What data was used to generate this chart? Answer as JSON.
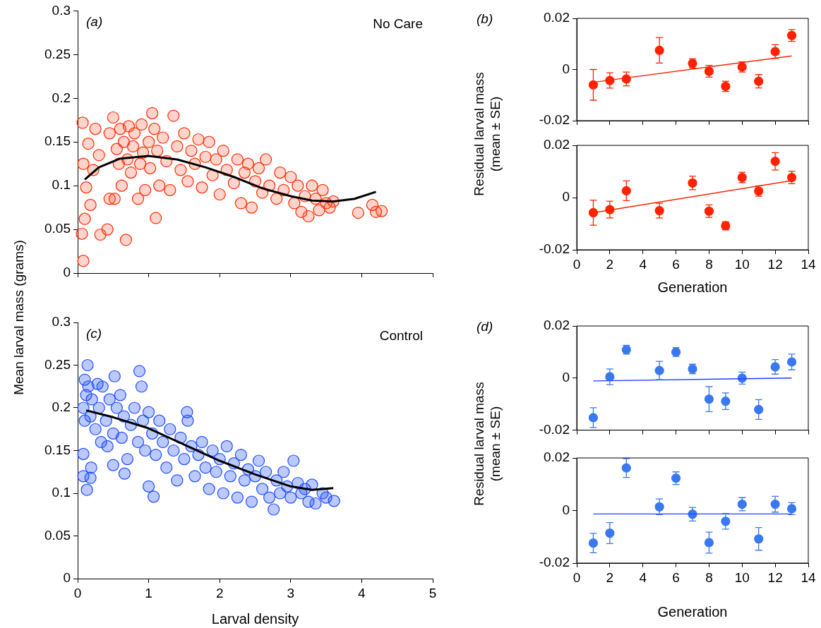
{
  "chart_data": [
    {
      "type": "scatter",
      "title": "(a)",
      "ylabel": "Mean larval mass (grams)",
      "annotations": [
        "No Care"
      ],
      "xlim": [
        0,
        5
      ],
      "xticks": [
        0,
        1,
        2,
        3,
        4,
        5
      ],
      "ylim": [
        0,
        0.3
      ],
      "yticks": [
        0,
        0.05,
        0.1,
        0.15,
        0.2,
        0.25,
        0.3
      ],
      "tick_labels": "y",
      "grid": false,
      "marker": "circle",
      "series": [
        {
          "type": "scatter",
          "color": "#ff2a00",
          "x": [
            0.06,
            0.08,
            0.07,
            0.08,
            0.1,
            0.12,
            0.15,
            0.18,
            0.22,
            0.25,
            0.3,
            0.32,
            0.42,
            0.45,
            0.45,
            0.5,
            0.52,
            0.55,
            0.58,
            0.6,
            0.62,
            0.65,
            0.68,
            0.7,
            0.72,
            0.75,
            0.78,
            0.8,
            0.85,
            0.88,
            0.9,
            0.92,
            0.95,
            1.0,
            1.02,
            1.05,
            1.08,
            1.1,
            1.12,
            1.15,
            1.2,
            1.25,
            1.3,
            1.35,
            1.4,
            1.45,
            1.5,
            1.55,
            1.6,
            1.65,
            1.7,
            1.75,
            1.8,
            1.85,
            1.9,
            1.95,
            2.0,
            2.05,
            2.1,
            2.2,
            2.25,
            2.3,
            2.35,
            2.4,
            2.45,
            2.5,
            2.55,
            2.6,
            2.65,
            2.7,
            2.8,
            2.85,
            2.9,
            3.0,
            3.05,
            3.1,
            3.15,
            3.2,
            3.25,
            3.3,
            3.35,
            3.4,
            3.45,
            3.5,
            3.55,
            3.6,
            3.95,
            4.15,
            4.2,
            4.28
          ],
          "values": [
            0.045,
            0.014,
            0.172,
            0.125,
            0.062,
            0.098,
            0.148,
            0.078,
            0.118,
            0.165,
            0.135,
            0.044,
            0.05,
            0.085,
            0.16,
            0.178,
            0.085,
            0.142,
            0.125,
            0.165,
            0.1,
            0.15,
            0.038,
            0.13,
            0.168,
            0.115,
            0.145,
            0.16,
            0.085,
            0.125,
            0.17,
            0.138,
            0.095,
            0.15,
            0.12,
            0.183,
            0.165,
            0.063,
            0.14,
            0.1,
            0.155,
            0.128,
            0.095,
            0.18,
            0.145,
            0.118,
            0.16,
            0.105,
            0.14,
            0.125,
            0.153,
            0.098,
            0.133,
            0.15,
            0.112,
            0.13,
            0.09,
            0.14,
            0.118,
            0.103,
            0.13,
            0.08,
            0.115,
            0.125,
            0.075,
            0.105,
            0.12,
            0.092,
            0.13,
            0.1,
            0.085,
            0.115,
            0.095,
            0.11,
            0.08,
            0.1,
            0.07,
            0.088,
            0.065,
            0.1,
            0.085,
            0.072,
            0.095,
            0.08,
            0.075,
            0.082,
            0.069,
            0.078,
            0.07,
            0.071
          ]
        },
        {
          "type": "line",
          "marker": "none",
          "color": "#000000",
          "x": [
            0.1,
            0.3,
            0.6,
            1.0,
            1.4,
            1.8,
            2.2,
            2.6,
            3.0,
            3.3,
            3.6,
            3.9,
            4.2
          ],
          "values": [
            0.107,
            0.121,
            0.131,
            0.134,
            0.13,
            0.121,
            0.11,
            0.097,
            0.088,
            0.083,
            0.082,
            0.085,
            0.093
          ]
        }
      ]
    },
    {
      "type": "scatter",
      "title": "(b)",
      "ylabel": "Residual larval mass (mean ± SE)",
      "xlim": [
        0,
        14
      ],
      "xticks": [
        0,
        2,
        4,
        6,
        8,
        10,
        12,
        14
      ],
      "ylim": [
        -0.02,
        0.02
      ],
      "yticks": [
        -0.02,
        0,
        0.02
      ],
      "tick_labels": "y",
      "grid": false,
      "marker": "circle",
      "series": [
        {
          "type": "scatter",
          "color": "#ff2200",
          "x": [
            1,
            2,
            3,
            5,
            7,
            8,
            9,
            10,
            11,
            12,
            13
          ],
          "values": [
            -0.006,
            -0.0043,
            -0.0037,
            0.0075,
            0.0024,
            -0.0007,
            -0.0066,
            0.001,
            -0.0046,
            0.007,
            0.0133
          ],
          "errors": [
            0.006,
            0.003,
            0.0027,
            0.005,
            0.0018,
            0.0023,
            0.002,
            0.002,
            0.0026,
            0.0027,
            0.0023
          ]
        },
        {
          "type": "line",
          "marker": "none",
          "color": "#ff2200",
          "x": [
            1,
            13
          ],
          "values": [
            -0.005,
            0.0053
          ]
        }
      ]
    },
    {
      "type": "scatter",
      "xlabel": "Generation",
      "xlim": [
        0,
        14
      ],
      "xticks": [
        0,
        2,
        4,
        6,
        8,
        10,
        12,
        14
      ],
      "ylim": [
        -0.02,
        0.02
      ],
      "yticks": [
        -0.02,
        0,
        0.02
      ],
      "grid": false,
      "marker": "circle",
      "series": [
        {
          "type": "scatter",
          "color": "#ff2200",
          "x": [
            1,
            2,
            3,
            5,
            7,
            8,
            9,
            10,
            11,
            12,
            13
          ],
          "values": [
            -0.0058,
            -0.0046,
            0.0026,
            -0.005,
            0.0056,
            -0.0052,
            -0.0108,
            0.0077,
            0.0025,
            0.0139,
            0.0077
          ],
          "errors": [
            0.0048,
            0.0032,
            0.0038,
            0.0028,
            0.0026,
            0.0024,
            0.0015,
            0.002,
            0.002,
            0.0033,
            0.0024
          ]
        },
        {
          "type": "line",
          "marker": "none",
          "color": "#ff2200",
          "x": [
            1,
            13
          ],
          "values": [
            -0.0058,
            0.0065
          ]
        }
      ]
    },
    {
      "type": "scatter",
      "title": "(c)",
      "xlabel": "Larval density",
      "annotations": [
        "Control"
      ],
      "xlim": [
        0,
        5
      ],
      "xticks": [
        0,
        1,
        2,
        3,
        4,
        5
      ],
      "ylim": [
        0,
        0.3
      ],
      "yticks": [
        0,
        0.05,
        0.1,
        0.15,
        0.2,
        0.25,
        0.3
      ],
      "grid": false,
      "marker": "circle",
      "series": [
        {
          "type": "scatter",
          "color": "#1f4dff",
          "x": [
            0.14,
            0.1,
            0.08,
            0.08,
            0.13,
            0.18,
            0.19,
            0.52,
            0.87,
            1.54,
            3.04,
            2.76,
            3.61,
            1.07,
            1.0,
            0.5,
            0.66,
            0.08,
            0.1,
            0.12,
            0.15,
            0.18,
            0.2,
            0.25,
            0.28,
            0.3,
            0.33,
            0.35,
            0.4,
            0.42,
            0.45,
            0.5,
            0.55,
            0.6,
            0.62,
            0.65,
            0.7,
            0.75,
            0.8,
            0.85,
            0.9,
            0.92,
            0.95,
            1.0,
            1.05,
            1.1,
            1.15,
            1.2,
            1.25,
            1.3,
            1.35,
            1.4,
            1.45,
            1.5,
            1.55,
            1.6,
            1.65,
            1.7,
            1.75,
            1.8,
            1.85,
            1.9,
            1.95,
            2.0,
            2.05,
            2.1,
            2.15,
            2.2,
            2.25,
            2.3,
            2.35,
            2.4,
            2.45,
            2.5,
            2.55,
            2.6,
            2.65,
            2.7,
            2.8,
            2.85,
            2.9,
            2.95,
            3.0,
            3.1,
            3.15,
            3.2,
            3.25,
            3.3,
            3.35,
            3.45,
            3.5
          ],
          "values": [
            0.25,
            0.233,
            0.146,
            0.12,
            0.104,
            0.118,
            0.13,
            0.237,
            0.243,
            0.195,
            0.138,
            0.081,
            0.091,
            0.096,
            0.108,
            0.133,
            0.123,
            0.2,
            0.185,
            0.215,
            0.225,
            0.19,
            0.21,
            0.175,
            0.228,
            0.2,
            0.16,
            0.225,
            0.185,
            0.155,
            0.21,
            0.17,
            0.2,
            0.215,
            0.165,
            0.19,
            0.14,
            0.18,
            0.2,
            0.16,
            0.225,
            0.185,
            0.15,
            0.195,
            0.17,
            0.145,
            0.185,
            0.16,
            0.13,
            0.175,
            0.15,
            0.115,
            0.165,
            0.14,
            0.185,
            0.155,
            0.12,
            0.145,
            0.16,
            0.13,
            0.105,
            0.15,
            0.125,
            0.14,
            0.1,
            0.155,
            0.12,
            0.135,
            0.095,
            0.145,
            0.115,
            0.128,
            0.09,
            0.12,
            0.138,
            0.105,
            0.125,
            0.095,
            0.115,
            0.1,
            0.125,
            0.108,
            0.095,
            0.112,
            0.1,
            0.105,
            0.09,
            0.11,
            0.088,
            0.1,
            0.095
          ]
        },
        {
          "type": "line",
          "marker": "none",
          "color": "#000000",
          "x": [
            0.12,
            0.5,
            1.0,
            1.5,
            2.0,
            2.5,
            3.0,
            3.3,
            3.6
          ],
          "values": [
            0.197,
            0.189,
            0.176,
            0.157,
            0.138,
            0.122,
            0.108,
            0.104,
            0.106
          ]
        }
      ]
    },
    {
      "type": "scatter",
      "title": "(d)",
      "ylabel": "Residual larval mass (mean ± SE)",
      "xlim": [
        0,
        14
      ],
      "xticks": [
        0,
        2,
        4,
        6,
        8,
        10,
        12,
        14
      ],
      "ylim": [
        -0.02,
        0.02
      ],
      "yticks": [
        -0.02,
        0,
        0.02
      ],
      "tick_labels": "y",
      "grid": false,
      "marker": "circle",
      "series": [
        {
          "type": "scatter",
          "color": "#3a78f0",
          "x": [
            1,
            2,
            3,
            5,
            6,
            7,
            8,
            9,
            10,
            11,
            12,
            13
          ],
          "values": [
            -0.0152,
            0.0005,
            0.0109,
            0.0029,
            0.01,
            0.0035,
            -0.0081,
            -0.0089,
            0,
            -0.0121,
            0.0043,
            0.0062
          ],
          "errors": [
            0.0038,
            0.003,
            0.0017,
            0.0035,
            0.0017,
            0.0018,
            0.0048,
            0.0032,
            0.0023,
            0.0038,
            0.0028,
            0.003
          ]
        },
        {
          "type": "line",
          "marker": "none",
          "color": "#1f3fff",
          "x": [
            1,
            13
          ],
          "values": [
            -0.0011,
            0
          ]
        }
      ]
    },
    {
      "type": "scatter",
      "xlabel": "Generation",
      "xlim": [
        0,
        14
      ],
      "xticks": [
        0,
        2,
        4,
        6,
        8,
        10,
        12,
        14
      ],
      "ylim": [
        -0.02,
        0.02
      ],
      "yticks": [
        -0.02,
        0,
        0.02
      ],
      "grid": false,
      "marker": "circle",
      "series": [
        {
          "type": "scatter",
          "color": "#3a78f0",
          "x": [
            1,
            2,
            3,
            5,
            6,
            7,
            8,
            9,
            10,
            11,
            12,
            13
          ],
          "values": [
            -0.0124,
            -0.0086,
            0.0162,
            0.0014,
            0.0123,
            -0.0014,
            -0.0122,
            -0.0041,
            0.0024,
            -0.0108,
            0.0024,
            0.0007
          ],
          "errors": [
            0.0037,
            0.004,
            0.0036,
            0.003,
            0.0024,
            0.0026,
            0.004,
            0.003,
            0.0025,
            0.0043,
            0.003,
            0.0023
          ]
        },
        {
          "type": "line",
          "marker": "none",
          "color": "#1f3fff",
          "x": [
            1,
            13
          ],
          "values": [
            -0.0013,
            -0.0013
          ]
        }
      ]
    }
  ]
}
